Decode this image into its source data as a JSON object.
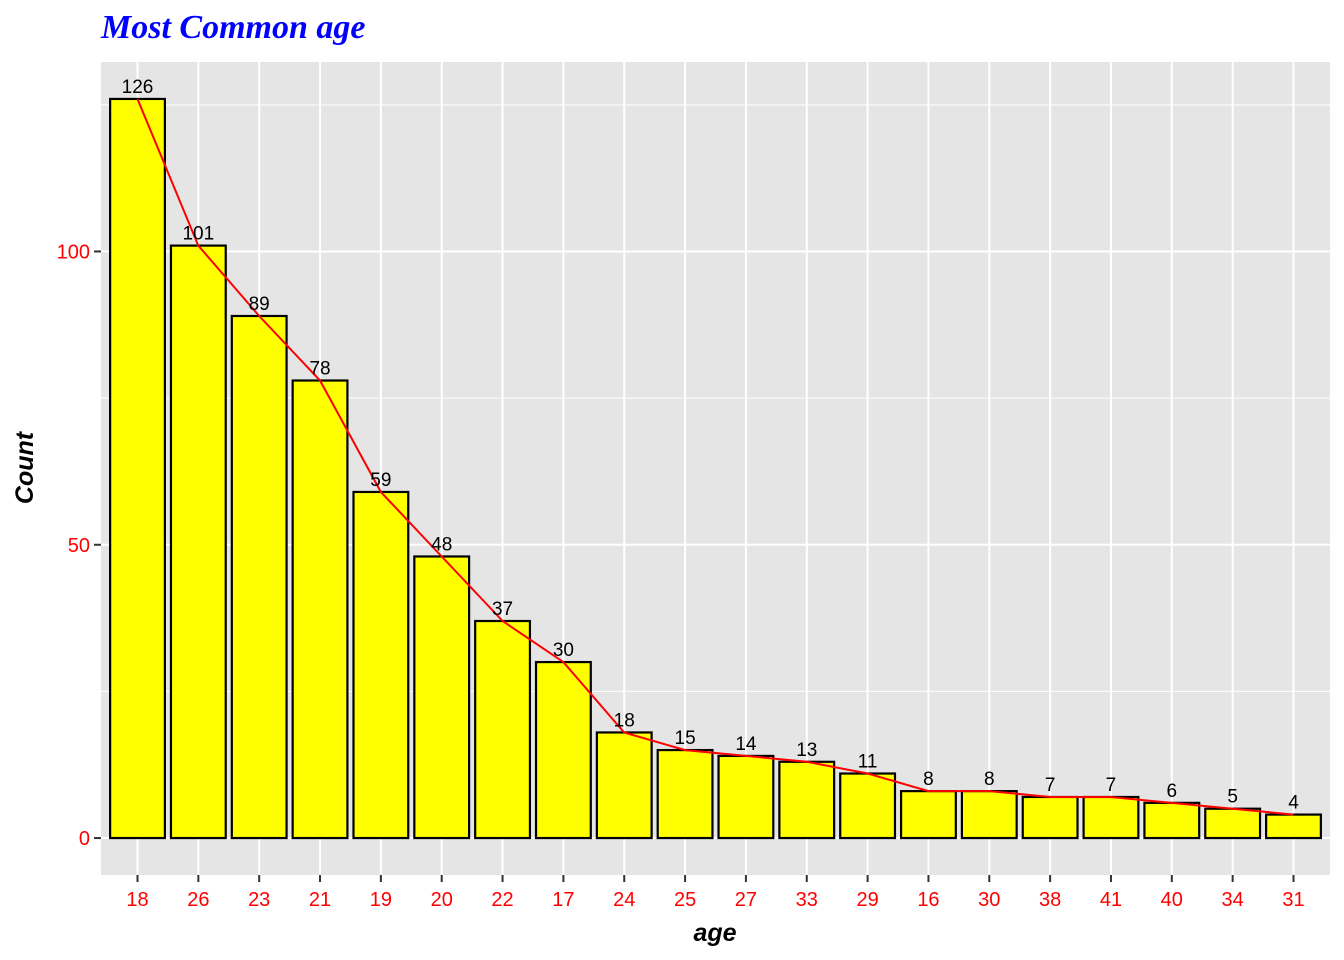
{
  "chart_data": {
    "type": "bar",
    "title": "Most Common age",
    "xlabel": "age",
    "ylabel": "Count",
    "categories": [
      "18",
      "26",
      "23",
      "21",
      "19",
      "20",
      "22",
      "17",
      "24",
      "25",
      "27",
      "33",
      "29",
      "16",
      "30",
      "38",
      "41",
      "40",
      "34",
      "31"
    ],
    "values": [
      126,
      101,
      89,
      78,
      59,
      48,
      37,
      30,
      18,
      15,
      14,
      13,
      11,
      8,
      8,
      7,
      7,
      6,
      5,
      4
    ],
    "data_labels": [
      "126",
      "101",
      "89",
      "78",
      "59",
      "48",
      "37",
      "30",
      "18",
      "15",
      "14",
      "13",
      "11",
      "8",
      "8",
      "7",
      "7",
      "6",
      "5",
      "4"
    ],
    "overlay_line": true,
    "ylim": [
      -6.3,
      132.3
    ],
    "yticks": [
      0,
      50,
      100
    ],
    "ytick_labels": [
      "0",
      "50",
      "100"
    ],
    "grid": true,
    "legend": "none",
    "colors": {
      "bar_fill": "#ffff00",
      "bar_outline": "#000000",
      "line": "#ff0000",
      "panel_background": "#e5e5e5",
      "grid": "#ffffff",
      "title": "#0000ff",
      "tick_labels": "#ff0000",
      "axis_title": "#000000"
    }
  }
}
